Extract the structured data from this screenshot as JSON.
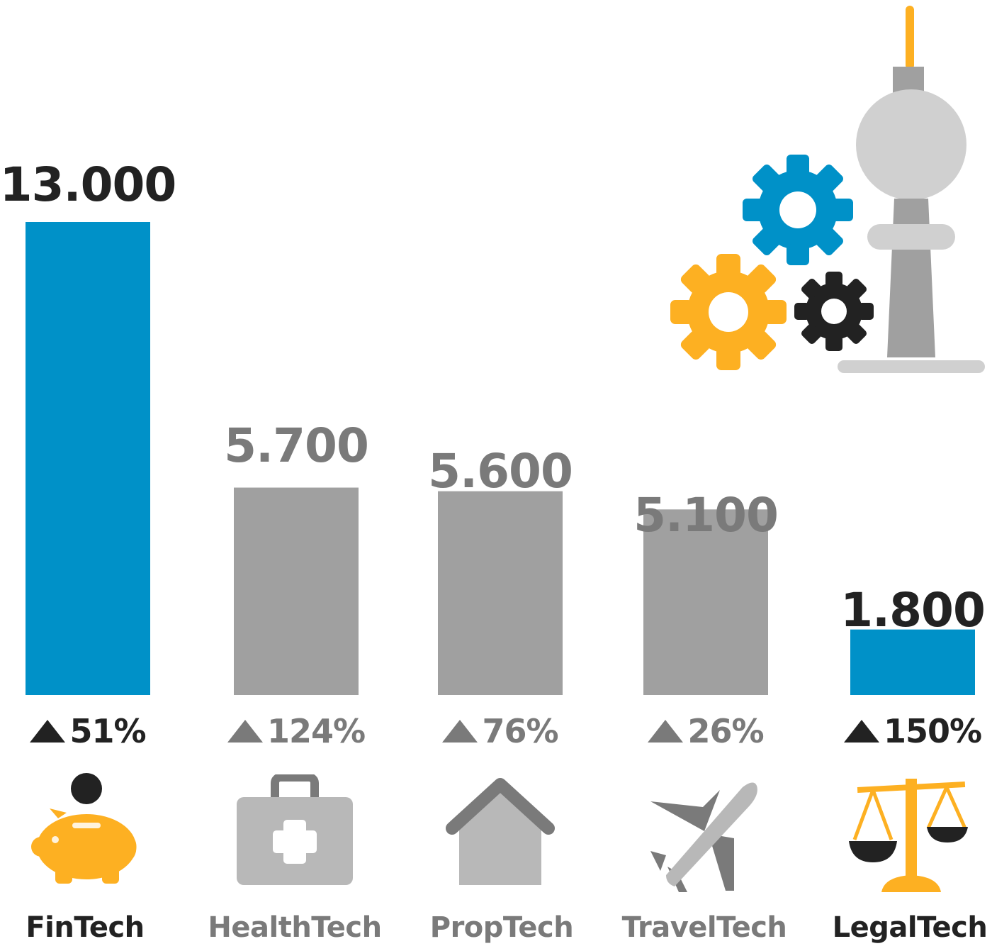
{
  "chart_data": {
    "type": "bar",
    "categories": [
      "FinTech",
      "HealthTech",
      "PropTech",
      "TravelTech",
      "LegalTech"
    ],
    "values": [
      13000,
      5700,
      5600,
      5100,
      1800
    ],
    "value_labels": [
      "13.000",
      "5.700",
      "5.600",
      "5.100",
      "1.800"
    ],
    "changes": [
      "51%",
      "124%",
      "76%",
      "26%",
      "150%"
    ],
    "highlighted": [
      true,
      false,
      false,
      false,
      true
    ],
    "icons": [
      "piggy-bank-icon",
      "first-aid-kit-icon",
      "house-icon",
      "airplane-icon",
      "scales-icon"
    ],
    "ylim": [
      0,
      13000
    ],
    "grid": false,
    "legend": "none"
  },
  "colors": {
    "highlight_bar": "#0091C8",
    "muted_bar": "#A0A0A0",
    "highlight_text": "#222222",
    "muted_text": "#7A7A7A",
    "accent_yellow": "#FDB022",
    "icon_gray_light": "#B8B8B8",
    "icon_gray_dark": "#7A7A7A"
  },
  "decoration": {
    "icons": [
      "gear-blue-icon",
      "gear-yellow-icon",
      "gear-black-icon",
      "tv-tower-icon"
    ]
  }
}
